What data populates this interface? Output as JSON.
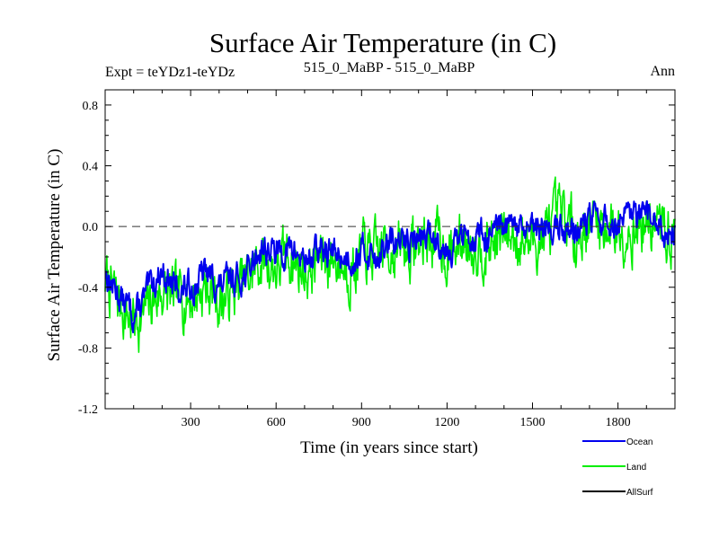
{
  "chart_data": {
    "type": "line",
    "title": "Surface Air Temperature (in C)",
    "subtitle_left": "Expt = teYDz1-teYDz",
    "subtitle_center": "515_0_MaBP - 515_0_MaBP",
    "subtitle_right": "Ann",
    "xlabel": "Time (in years since start)",
    "ylabel": "Surface Air Temperature (in C)",
    "xlim": [
      0,
      2000
    ],
    "ylim": [
      -1.2,
      0.9
    ],
    "xticks": [
      300,
      600,
      900,
      1200,
      1500,
      1800
    ],
    "xtick_labels": [
      "300",
      "600",
      "900",
      "1200",
      "1500",
      "1800"
    ],
    "yticks": [
      -1.2,
      -0.8,
      -0.4,
      0.0,
      0.4,
      0.8
    ],
    "ytick_labels": [
      "-1.2",
      "-0.8",
      "-0.4",
      "0.0",
      "0.4",
      "0.8"
    ],
    "reference_line": 0.0,
    "series": [
      {
        "name": "Land",
        "color": "#00ee00",
        "x": [
          0,
          50,
          100,
          150,
          200,
          250,
          300,
          350,
          400,
          450,
          500,
          550,
          600,
          650,
          700,
          750,
          800,
          850,
          900,
          950,
          1000,
          1050,
          1100,
          1150,
          1200,
          1250,
          1300,
          1350,
          1400,
          1450,
          1500,
          1550,
          1600,
          1650,
          1700,
          1750,
          1800,
          1850,
          1900,
          1950,
          2000
        ],
        "values": [
          -0.35,
          -0.52,
          -0.62,
          -0.55,
          -0.42,
          -0.52,
          -0.45,
          -0.38,
          -0.47,
          -0.42,
          -0.38,
          -0.22,
          -0.26,
          -0.2,
          -0.28,
          -0.22,
          -0.2,
          -0.25,
          -0.18,
          -0.22,
          -0.12,
          -0.16,
          -0.12,
          -0.06,
          -0.16,
          -0.1,
          -0.06,
          -0.08,
          -0.08,
          -0.05,
          -0.1,
          -0.04,
          0.0,
          -0.05,
          0.06,
          0.02,
          0.0,
          0.04,
          0.04,
          -0.02,
          -0.08
        ]
      },
      {
        "name": "Ocean",
        "color": "#0000ee",
        "x": [
          0,
          50,
          100,
          150,
          200,
          250,
          300,
          350,
          400,
          450,
          500,
          550,
          600,
          650,
          700,
          750,
          800,
          850,
          900,
          950,
          1000,
          1050,
          1100,
          1150,
          1200,
          1250,
          1300,
          1350,
          1400,
          1450,
          1500,
          1550,
          1600,
          1650,
          1700,
          1750,
          1800,
          1850,
          1900,
          1950,
          2000
        ],
        "values": [
          -0.3,
          -0.45,
          -0.58,
          -0.45,
          -0.28,
          -0.42,
          -0.4,
          -0.3,
          -0.4,
          -0.35,
          -0.3,
          -0.12,
          -0.18,
          -0.15,
          -0.22,
          -0.16,
          -0.18,
          -0.2,
          -0.15,
          -0.18,
          -0.12,
          -0.12,
          -0.08,
          -0.06,
          -0.12,
          -0.08,
          -0.04,
          -0.06,
          -0.05,
          -0.03,
          -0.06,
          -0.02,
          0.0,
          -0.02,
          0.05,
          0.02,
          0.01,
          0.04,
          0.03,
          0.0,
          -0.05
        ]
      },
      {
        "name": "AllSurf",
        "color": "#000000",
        "x": [],
        "values": []
      }
    ]
  }
}
